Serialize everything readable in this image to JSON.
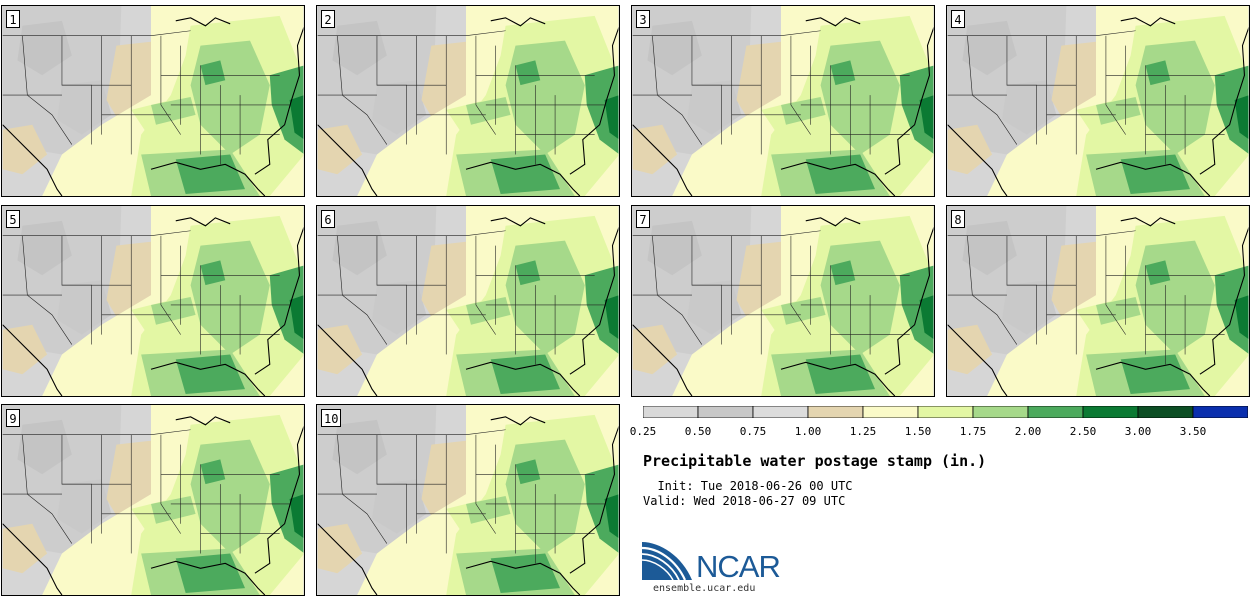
{
  "panels": [
    {
      "label": "1"
    },
    {
      "label": "2"
    },
    {
      "label": "3"
    },
    {
      "label": "4"
    },
    {
      "label": "5"
    },
    {
      "label": "6"
    },
    {
      "label": "7"
    },
    {
      "label": "8"
    },
    {
      "label": "9"
    },
    {
      "label": "10"
    }
  ],
  "legend": {
    "colors": [
      "#d9d9d9",
      "#c8c8c8",
      "#dcdcdc",
      "#e4d5b0",
      "#fafac8",
      "#e3f7a4",
      "#a6d98a",
      "#4caa5d",
      "#0b7a33",
      "#0c4e24",
      "#0a2fae"
    ],
    "ticks": [
      "0.25",
      "0.50",
      "0.75",
      "1.00",
      "1.25",
      "1.50",
      "1.75",
      "2.00",
      "2.50",
      "3.00",
      "3.50"
    ]
  },
  "title": "Precipitable water postage stamp (in.)",
  "init": "  Init: Tue 2018-06-26 00 UTC",
  "valid": "Valid: Wed 2018-06-27 09 UTC",
  "logo": {
    "name": "ncar-logo",
    "text": "NCAR",
    "site": "ensemble.ucar.edu",
    "brand_color": "#1c5a97"
  }
}
